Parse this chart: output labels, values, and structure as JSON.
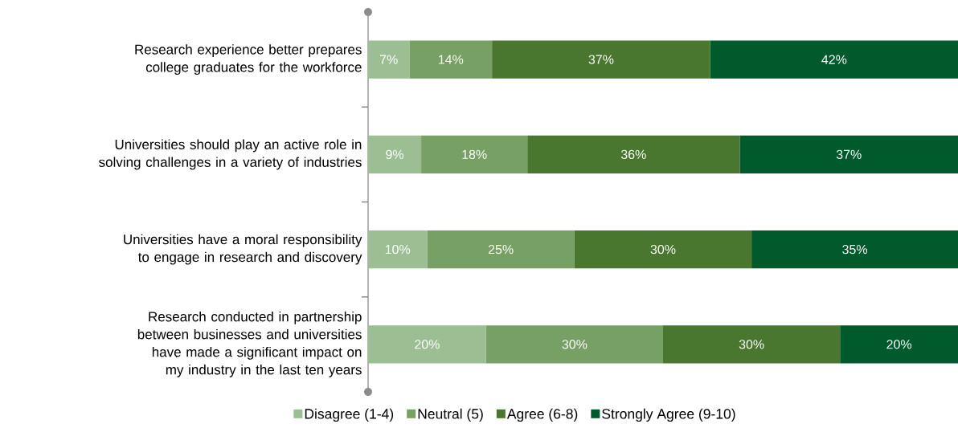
{
  "chart_data": {
    "type": "bar",
    "orientation": "horizontal",
    "stacked": true,
    "legend": "bottom",
    "categories": [
      "Research experience better prepares college graduates for the workforce",
      "Universities should play an active role in solving challenges in a variety of industries",
      "Universities have a moral responsibility to engage in research and discovery",
      "Research conducted in partnership between businesses and universities have made a significant impact on my industry in the last ten years"
    ],
    "series": [
      {
        "name": "Disagree (1-4)",
        "color": "#9bbf92",
        "values": [
          7,
          9,
          10,
          20
        ],
        "value_labels": [
          "7%",
          "9%",
          "10%",
          "20%"
        ]
      },
      {
        "name": "Neutral (5)",
        "color": "#77a064",
        "values": [
          14,
          18,
          25,
          30
        ],
        "value_labels": [
          "14%",
          "18%",
          "25%",
          "30%"
        ]
      },
      {
        "name": "Agree (6-8)",
        "color": "#4a7730",
        "values": [
          37,
          36,
          30,
          30
        ],
        "value_labels": [
          "37%",
          "36%",
          "30%",
          "30%"
        ]
      },
      {
        "name": "Strongly Agree (9-10)",
        "color": "#005a2c",
        "values": [
          42,
          37,
          35,
          20
        ],
        "value_labels": [
          "42%",
          "37%",
          "35%",
          "20%"
        ]
      }
    ]
  }
}
